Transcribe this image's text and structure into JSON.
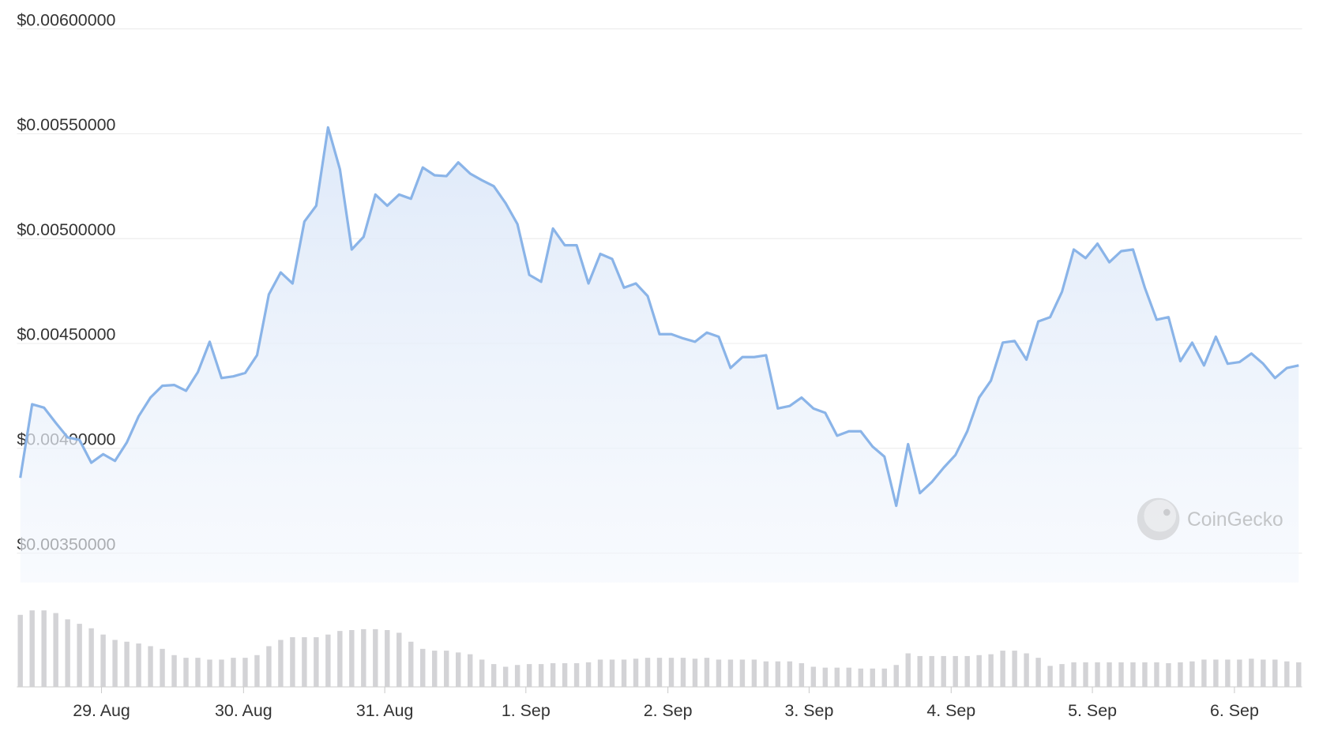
{
  "chart_data": {
    "type": "line",
    "watermark": "CoinGecko",
    "xlim": [
      0,
      108
    ],
    "xticks": [
      {
        "value": 6.86,
        "label": "29. Aug"
      },
      {
        "value": 18.86,
        "label": "30. Aug"
      },
      {
        "value": 30.79,
        "label": "31. Aug"
      },
      {
        "value": 42.71,
        "label": "1. Sep"
      },
      {
        "value": 54.71,
        "label": "2. Sep"
      },
      {
        "value": 66.64,
        "label": "3. Sep"
      },
      {
        "value": 78.64,
        "label": "4. Sep"
      },
      {
        "value": 90.57,
        "label": "5. Sep"
      },
      {
        "value": 102.57,
        "label": "6. Sep"
      }
    ],
    "ylim": [
      0.00336,
      0.006
    ],
    "yticks": [
      {
        "value": 0.0035,
        "label": "$0.00350000"
      },
      {
        "value": 0.004,
        "label": "$0.00400000"
      },
      {
        "value": 0.0045,
        "label": "$0.00450000"
      },
      {
        "value": 0.005,
        "label": "$0.00500000"
      },
      {
        "value": 0.0055,
        "label": "$0.00550000"
      },
      {
        "value": 0.006,
        "label": "$0.00600000"
      }
    ],
    "grid": true,
    "series": [
      {
        "color": "#8ab4e8",
        "values": [
          0.003859,
          0.00421,
          0.004194,
          0.004121,
          0.004052,
          0.00404,
          0.003931,
          0.003972,
          0.00394,
          0.004028,
          0.004153,
          0.004242,
          0.004298,
          0.004302,
          0.004274,
          0.004363,
          0.004508,
          0.004335,
          0.004343,
          0.004359,
          0.004444,
          0.004734,
          0.004839,
          0.004786,
          0.005081,
          0.005157,
          0.00553,
          0.005331,
          0.004948,
          0.005008,
          0.00521,
          0.005157,
          0.00521,
          0.00519,
          0.005339,
          0.005302,
          0.005298,
          0.005363,
          0.00531,
          0.005278,
          0.00525,
          0.005169,
          0.005069,
          0.004827,
          0.004794,
          0.005048,
          0.004968,
          0.004968,
          0.004786,
          0.004927,
          0.004903,
          0.004766,
          0.004786,
          0.004726,
          0.004544,
          0.004544,
          0.004524,
          0.004508,
          0.004552,
          0.004532,
          0.004383,
          0.004435,
          0.004435,
          0.004444,
          0.00419,
          0.004202,
          0.004242,
          0.00419,
          0.004169,
          0.00406,
          0.004081,
          0.004081,
          0.004008,
          0.00396,
          0.003726,
          0.00402,
          0.003786,
          0.003839,
          0.003907,
          0.003968,
          0.004081,
          0.004242,
          0.004323,
          0.004504,
          0.004512,
          0.004423,
          0.004605,
          0.004625,
          0.004746,
          0.004948,
          0.004907,
          0.004976,
          0.004887,
          0.00494,
          0.004948,
          0.004766,
          0.004613,
          0.004625,
          0.004415,
          0.004504,
          0.004395,
          0.004532,
          0.004403,
          0.004411,
          0.004452,
          0.004403,
          0.004335,
          0.004383,
          0.004395
        ]
      }
    ],
    "volume": {
      "color": "#d3d3d6",
      "values": [
        80,
        85,
        85,
        82,
        75,
        70,
        65,
        58,
        52,
        50,
        48,
        45,
        42,
        35,
        32,
        32,
        30,
        30,
        32,
        32,
        35,
        45,
        52,
        55,
        55,
        55,
        58,
        62,
        63,
        64,
        64,
        63,
        60,
        50,
        42,
        40,
        40,
        38,
        36,
        30,
        25,
        22,
        24,
        25,
        25,
        26,
        26,
        26,
        27,
        30,
        30,
        30,
        31,
        32,
        32,
        32,
        32,
        31,
        32,
        30,
        30,
        30,
        30,
        28,
        28,
        28,
        26,
        22,
        21,
        21,
        21,
        20,
        20,
        20,
        24,
        37,
        34,
        34,
        34,
        34,
        34,
        35,
        36,
        40,
        40,
        37,
        32,
        23,
        25,
        27,
        27,
        27,
        27,
        27,
        27,
        27,
        27,
        26,
        27,
        28,
        30,
        30,
        30,
        30,
        31,
        30,
        30,
        28,
        27
      ]
    }
  }
}
